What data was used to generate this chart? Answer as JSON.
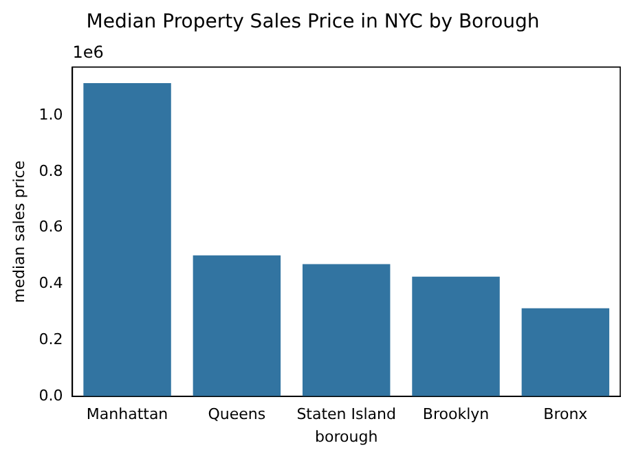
{
  "chart_data": {
    "type": "bar",
    "title": "Median Property Sales Price in NYC by Borough",
    "xlabel": "borough",
    "ylabel": "median sales price",
    "annotations": [
      "1e6"
    ],
    "categories": [
      "Manhattan",
      "Queens",
      "Staten Island",
      "Brooklyn",
      "Bronx"
    ],
    "values": [
      1.115,
      0.502,
      0.471,
      0.426,
      0.314
    ],
    "color": "#3274a1",
    "ylim": [
      0,
      1.172
    ],
    "yticks": [
      {
        "value": 0,
        "label": "0.0"
      },
      {
        "value": 0.2,
        "label": "0.2"
      },
      {
        "value": 0.4,
        "label": "0.4"
      },
      {
        "value": 0.6,
        "label": "0.6"
      },
      {
        "value": 0.8,
        "label": "0.8"
      },
      {
        "value": 1,
        "label": "1.0"
      }
    ],
    "grid": false,
    "legend": false
  }
}
